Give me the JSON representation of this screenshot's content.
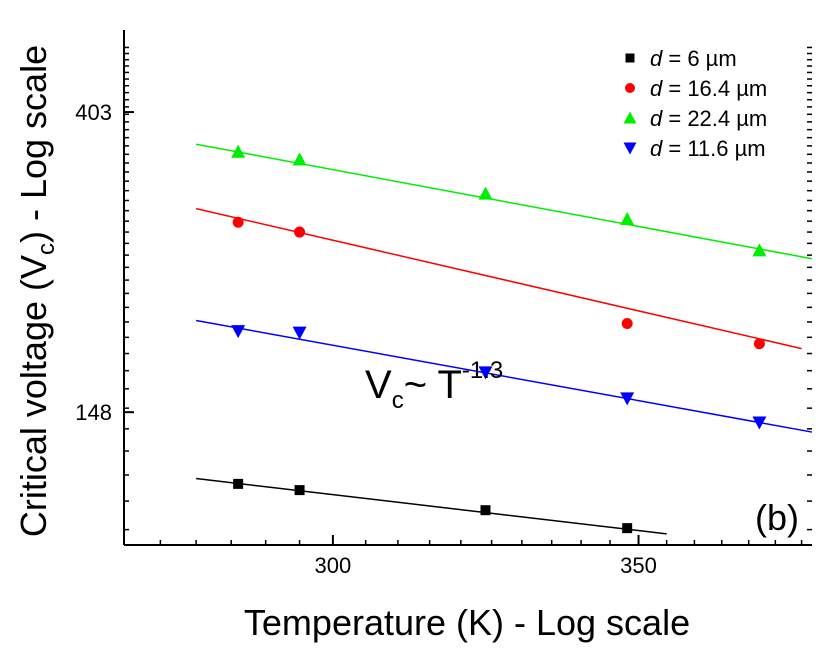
{
  "chart_data": {
    "type": "scatter",
    "title": "",
    "xlabel": "Temperature (K) - Log scale",
    "ylabel": {
      "prefix": "Critical voltage (V",
      "subscript": "c",
      "suffix": ") - Log scale"
    },
    "x_scale": "log",
    "y_scale": "log",
    "xlim": [
      270,
      382
    ],
    "ylim": [
      95,
      530
    ],
    "x_ticks": [
      300,
      350
    ],
    "x_tick_labels": [
      "300",
      "350"
    ],
    "y_ticks": [
      148,
      403
    ],
    "y_tick_labels": [
      "148",
      "403"
    ],
    "grid": false,
    "legend": {
      "placement": "top-right"
    },
    "series": [
      {
        "name": {
          "italic": "d",
          "rest": " = 6 µm"
        },
        "color": "#000000",
        "marker": "square",
        "x": [
          286,
          295,
          324,
          348
        ],
        "y": [
          116.5,
          114.1,
          106.7,
          100.5
        ],
        "fit": {
          "x": [
            280,
            355
          ],
          "y": [
            118.6,
            98.6
          ]
        }
      },
      {
        "name": {
          "italic": "d",
          "rest": " = 16.4 µm"
        },
        "color": "#ff0000",
        "marker": "circle",
        "x": [
          286,
          295,
          348,
          372
        ],
        "y": [
          279,
          270,
          199,
          186
        ],
        "fit": {
          "x": [
            280,
            380
          ],
          "y": [
            292,
            183
          ]
        }
      },
      {
        "name": {
          "italic": "d",
          "rest": " = 22.4 µm"
        },
        "color": "#00ee00",
        "marker": "triangle-up",
        "x": [
          286,
          295,
          324,
          348,
          372
        ],
        "y": [
          353,
          344,
          307,
          282,
          254
        ],
        "fit": {
          "x": [
            280,
            382
          ],
          "y": [
            362,
            247
          ]
        }
      },
      {
        "name": {
          "italic": "d",
          "rest": " = 11.6 µm"
        },
        "color": "#0000ff",
        "marker": "triangle-down",
        "x": [
          286,
          295,
          324,
          348,
          372
        ],
        "y": [
          194,
          193,
          169,
          155,
          143
        ],
        "fit": {
          "x": [
            280,
            382
          ],
          "y": [
            201,
            138.5
          ]
        }
      }
    ],
    "annotations": {
      "power_law": {
        "v": "V",
        "c": "c",
        "tilde": "~ T",
        "exp": "-1.3"
      },
      "panel": "(b)"
    }
  }
}
